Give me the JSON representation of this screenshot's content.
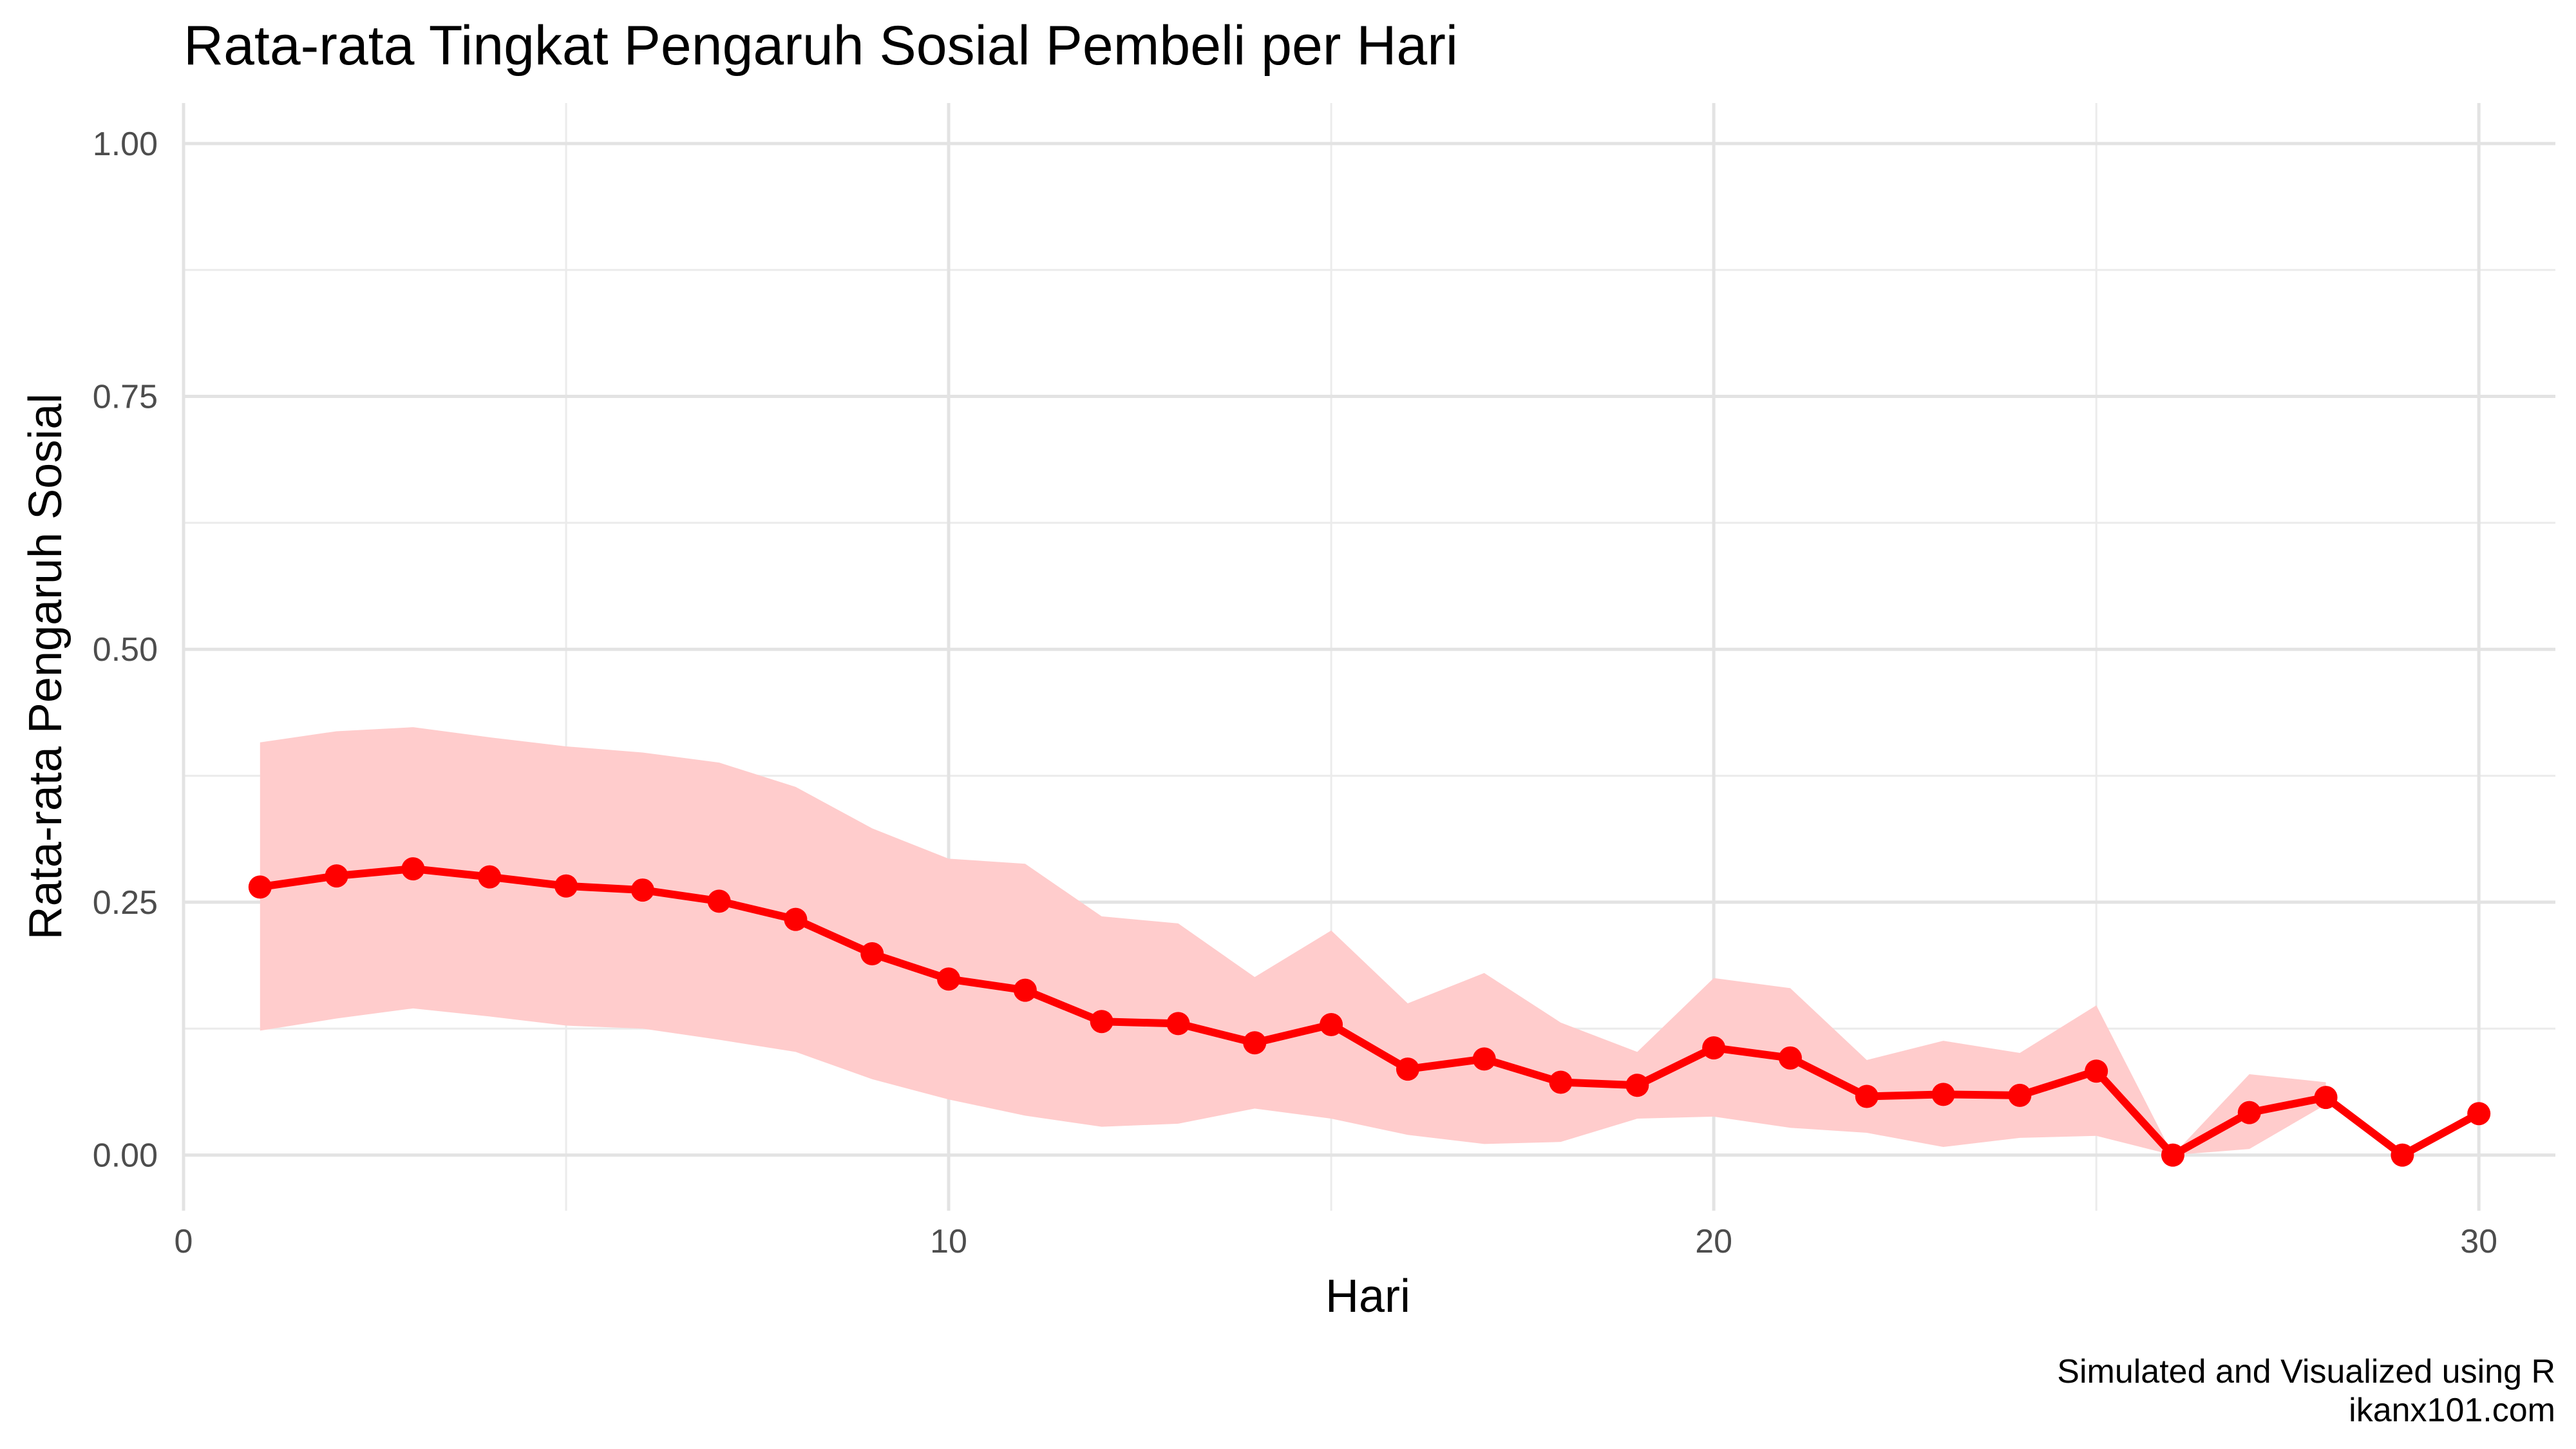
{
  "chart_data": {
    "type": "line",
    "title": "Rata-rata Tingkat Pengaruh Sosial Pembeli per Hari",
    "xlabel": "Hari",
    "ylabel": "Rata-rata Pengaruh Sosial",
    "xlim": [
      0,
      31
    ],
    "ylim": [
      -0.055,
      1.04
    ],
    "x_ticks": [
      0,
      10,
      20,
      30
    ],
    "x_tick_labels": [
      "0",
      "10",
      "20",
      "30"
    ],
    "y_ticks": [
      0,
      0.25,
      0.5,
      0.75,
      1.0
    ],
    "y_tick_labels": [
      "0.00",
      "0.25",
      "0.50",
      "0.75",
      "1.00"
    ],
    "grid": true,
    "line_color": "#ff0000",
    "ribbon_color": "#ffcccc",
    "series": [
      {
        "x": [
          1,
          2,
          3,
          4,
          5,
          6,
          7,
          8,
          9,
          10,
          11,
          12,
          13,
          14,
          15,
          16,
          17,
          18,
          19,
          20,
          21,
          22,
          23,
          24,
          25,
          26,
          27,
          28,
          29,
          30
        ],
        "values": [
          0.265,
          0.276,
          0.283,
          0.275,
          0.266,
          0.262,
          0.251,
          0.233,
          0.199,
          0.174,
          0.163,
          0.132,
          0.13,
          0.111,
          0.129,
          0.085,
          0.095,
          0.072,
          0.069,
          0.106,
          0.096,
          0.058,
          0.06,
          0.059,
          0.083,
          0.0,
          0.042,
          0.057,
          0.0,
          0.041
        ],
        "lower": [
          0.123,
          0.135,
          0.145,
          0.137,
          0.128,
          0.125,
          0.114,
          0.102,
          0.075,
          0.055,
          0.039,
          0.028,
          0.031,
          0.046,
          0.036,
          0.02,
          0.011,
          0.013,
          0.036,
          0.038,
          0.027,
          0.022,
          0.008,
          0.017,
          0.019,
          0.0,
          0.006,
          0.05,
          null,
          null
        ],
        "upper": [
          0.408,
          0.419,
          0.423,
          0.413,
          0.404,
          0.398,
          0.388,
          0.364,
          0.323,
          0.293,
          0.288,
          0.236,
          0.229,
          0.176,
          0.222,
          0.15,
          0.18,
          0.131,
          0.102,
          0.175,
          0.165,
          0.094,
          0.113,
          0.101,
          0.148,
          0.0,
          0.08,
          0.072,
          null,
          null
        ]
      }
    ]
  },
  "caption": {
    "line1": "Simulated and Visualized using R",
    "line2": "ikanx101.com"
  }
}
